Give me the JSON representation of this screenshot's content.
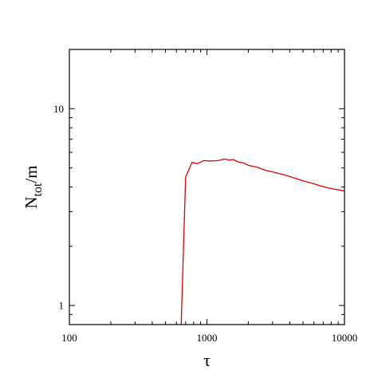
{
  "chart_data": {
    "type": "line",
    "xlabel": "τ",
    "ylabel": {
      "main": "N",
      "subscript": "tot",
      "suffix": "/m"
    },
    "xscale": "log",
    "yscale": "log",
    "xlim": [
      100,
      10000
    ],
    "ylim": [
      0.8,
      20
    ],
    "x_ticks": [
      {
        "value": 100,
        "label": "100"
      },
      {
        "value": 1000,
        "label": "1000"
      },
      {
        "value": 10000,
        "label": "10000"
      }
    ],
    "y_ticks": [
      {
        "value": 1,
        "label": "1"
      },
      {
        "value": 10,
        "label": "10"
      }
    ],
    "series": [
      {
        "color": "#e00000",
        "x": [
          650,
          700,
          780,
          850,
          950,
          1050,
          1200,
          1350,
          1450,
          1550,
          1700,
          1850,
          2000,
          2300,
          2700,
          3200,
          3700,
          4300,
          5000,
          5800,
          6700,
          7700,
          8800,
          10000
        ],
        "y": [
          0.8,
          4.5,
          5.35,
          5.25,
          5.45,
          5.42,
          5.45,
          5.55,
          5.48,
          5.52,
          5.35,
          5.3,
          5.15,
          5.05,
          4.85,
          4.72,
          4.6,
          4.45,
          4.3,
          4.18,
          4.05,
          3.95,
          3.88,
          3.82
        ]
      }
    ]
  }
}
